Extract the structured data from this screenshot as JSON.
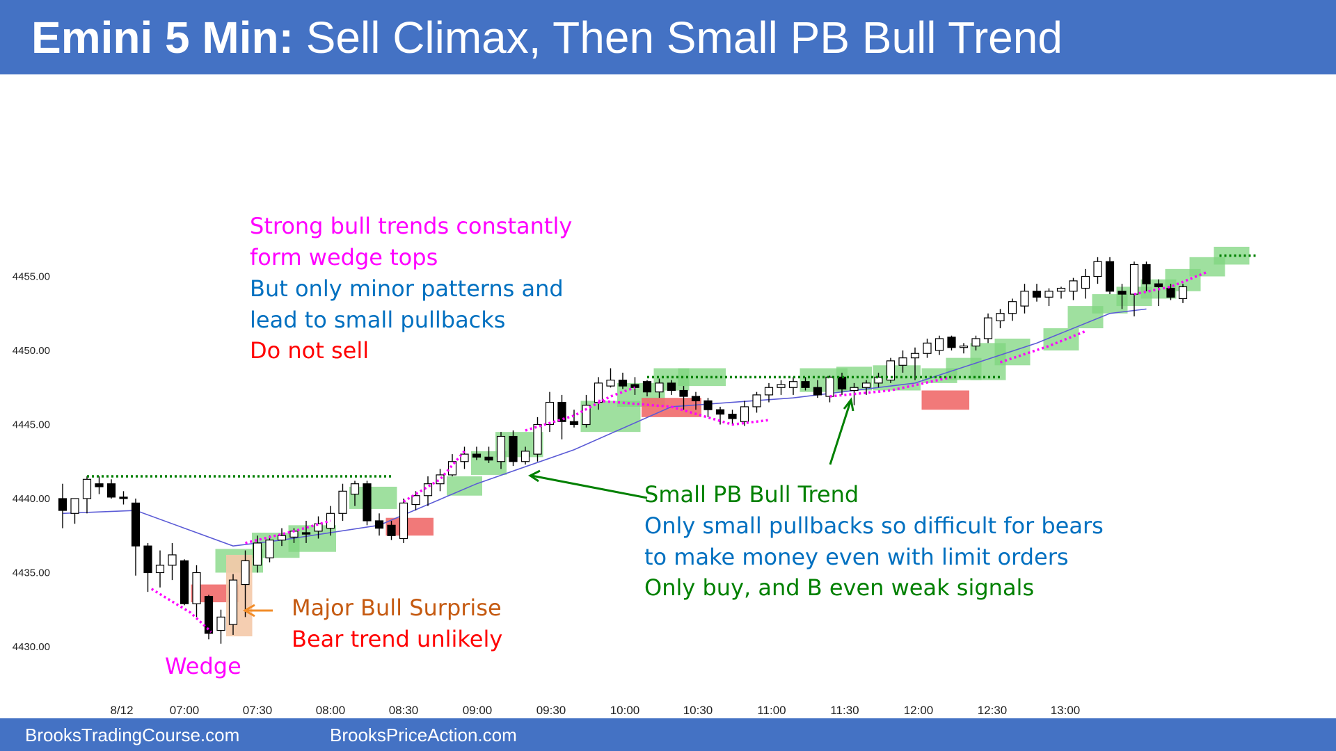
{
  "header": {
    "title_bold": "Emini 5 Min:",
    "title_rest": " Sell Climax, Then Small PB Bull Trend"
  },
  "footer": {
    "left": "BrooksTradingCourse.com",
    "right": "BrooksPriceAction.com"
  },
  "annotations": {
    "wedge_tops": [
      "Strong bull trends constantly",
      "form wedge tops"
    ],
    "minor_patterns": [
      "But only minor patterns and",
      "lead to small pullbacks"
    ],
    "do_not_sell": "Do not sell",
    "major_bull_surprise": "Major Bull Surprise",
    "bear_trend_unlikely": "Bear trend unlikely",
    "wedge": "Wedge",
    "small_pb_bull_trend": "Small PB Bull Trend",
    "only_small_pullbacks": [
      "Only small pullbacks so difficult for bears",
      "to make money even with limit orders"
    ],
    "only_buy": "Only buy, and B even weak signals"
  },
  "colors": {
    "header_bg": "#4472c4",
    "bull_highlight": "#7fd67f",
    "bear_highlight": "#f06a6a",
    "surprise_highlight": "#f4c9a8",
    "ema_line": "#5b5bd6",
    "wedge_dots": "#ff00ff",
    "resistance_dots": "#008000",
    "arrow_orange": "#f28c28",
    "arrow_green": "#008000"
  },
  "chart_data": {
    "type": "candlestick",
    "ylim": [
      4428.5,
      4460
    ],
    "yticks": [
      "4455.00",
      "4450.00",
      "4445.00",
      "4440.00",
      "4435.00",
      "4430.00"
    ],
    "xticks": [
      "8/12",
      "07:00",
      "07:30",
      "08:00",
      "08:30",
      "09:00",
      "09:30",
      "10:00",
      "10:30",
      "11:00",
      "11:30",
      "12:00",
      "12:30",
      "13:00"
    ],
    "bars": [
      {
        "time": "06:35",
        "o": 4440.0,
        "h": 4441.0,
        "l": 4438.0,
        "c": 4439.2
      },
      {
        "time": "06:40",
        "o": 4439.0,
        "h": 4440.0,
        "l": 4438.3,
        "c": 4440.0
      },
      {
        "time": "06:45",
        "o": 4440.0,
        "h": 4441.5,
        "l": 4439.0,
        "c": 4441.3
      },
      {
        "time": "06:50",
        "o": 4441.0,
        "h": 4441.5,
        "l": 4440.3,
        "c": 4440.8
      },
      {
        "time": "06:55",
        "o": 4441.0,
        "h": 4441.3,
        "l": 4440.0,
        "c": 4440.1
      },
      {
        "time": "07:00",
        "o": 4440.1,
        "h": 4440.5,
        "l": 4439.6,
        "c": 4440.0
      },
      {
        "time": "07:05",
        "o": 4439.7,
        "h": 4440.0,
        "l": 4434.8,
        "c": 4436.8
      },
      {
        "time": "07:10",
        "o": 4436.8,
        "h": 4437.0,
        "l": 4433.7,
        "c": 4435.0
      },
      {
        "time": "07:15",
        "o": 4435.0,
        "h": 4436.5,
        "l": 4434.0,
        "c": 4435.5
      },
      {
        "time": "07:20",
        "o": 4435.5,
        "h": 4437.0,
        "l": 4434.5,
        "c": 4436.2
      },
      {
        "time": "07:25",
        "o": 4435.8,
        "h": 4435.9,
        "l": 4432.8,
        "c": 4432.9
      },
      {
        "time": "07:30",
        "o": 4432.9,
        "h": 4435.5,
        "l": 4432.0,
        "c": 4435.0
      },
      {
        "time": "07:35",
        "o": 4433.4,
        "h": 4433.5,
        "l": 4430.5,
        "c": 4430.9
      },
      {
        "time": "07:40",
        "o": 4431.1,
        "h": 4432.5,
        "l": 4430.2,
        "c": 4432.0
      },
      {
        "time": "07:45",
        "o": 4431.5,
        "h": 4434.9,
        "l": 4430.8,
        "c": 4434.5
      },
      {
        "time": "07:50",
        "o": 4434.2,
        "h": 4436.5,
        "l": 4432.0,
        "c": 4435.8
      },
      {
        "time": "07:55",
        "o": 4435.5,
        "h": 4437.5,
        "l": 4435.0,
        "c": 4437.0
      },
      {
        "time": "08:00",
        "o": 4436.0,
        "h": 4437.5,
        "l": 4435.7,
        "c": 4437.2
      },
      {
        "time": "08:05",
        "o": 4437.2,
        "h": 4438.0,
        "l": 4436.8,
        "c": 4437.5
      },
      {
        "time": "08:10",
        "o": 4437.4,
        "h": 4438.0,
        "l": 4437.0,
        "c": 4437.8
      },
      {
        "time": "08:15",
        "o": 4437.7,
        "h": 4438.5,
        "l": 4437.0,
        "c": 4437.6
      },
      {
        "time": "08:20",
        "o": 4437.8,
        "h": 4438.8,
        "l": 4437.3,
        "c": 4438.3
      },
      {
        "time": "08:25",
        "o": 4438.0,
        "h": 4439.5,
        "l": 4437.5,
        "c": 4439.0
      },
      {
        "time": "08:30",
        "o": 4439.0,
        "h": 4441.0,
        "l": 4438.5,
        "c": 4440.5
      },
      {
        "time": "08:35",
        "o": 4440.3,
        "h": 4441.2,
        "l": 4439.5,
        "c": 4441.0
      },
      {
        "time": "08:40",
        "o": 4441.0,
        "h": 4441.2,
        "l": 4438.2,
        "c": 4438.5
      },
      {
        "time": "08:45",
        "o": 4438.5,
        "h": 4439.0,
        "l": 4437.5,
        "c": 4438.0
      },
      {
        "time": "08:50",
        "o": 4438.2,
        "h": 4438.5,
        "l": 4437.2,
        "c": 4437.5
      },
      {
        "time": "08:55",
        "o": 4437.3,
        "h": 4440.0,
        "l": 4437.0,
        "c": 4439.7
      },
      {
        "time": "09:00",
        "o": 4439.6,
        "h": 4440.5,
        "l": 4439.2,
        "c": 4440.2
      },
      {
        "time": "09:05",
        "o": 4440.2,
        "h": 4441.5,
        "l": 4439.5,
        "c": 4441.0
      },
      {
        "time": "09:10",
        "o": 4441.0,
        "h": 4442.0,
        "l": 4440.5,
        "c": 4441.6
      },
      {
        "time": "09:15",
        "o": 4441.6,
        "h": 4443.0,
        "l": 4441.5,
        "c": 4442.5
      },
      {
        "time": "09:20",
        "o": 4442.5,
        "h": 4443.5,
        "l": 4442.0,
        "c": 4443.0
      },
      {
        "time": "09:25",
        "o": 4443.0,
        "h": 4443.5,
        "l": 4442.6,
        "c": 4442.8
      },
      {
        "time": "09:30",
        "o": 4442.8,
        "h": 4443.5,
        "l": 4442.4,
        "c": 4442.6
      },
      {
        "time": "09:35",
        "o": 4442.5,
        "h": 4444.5,
        "l": 4442.0,
        "c": 4444.2
      },
      {
        "time": "09:40",
        "o": 4444.2,
        "h": 4444.6,
        "l": 4442.2,
        "c": 4442.5
      },
      {
        "time": "09:45",
        "o": 4442.5,
        "h": 4443.5,
        "l": 4442.3,
        "c": 4443.2
      },
      {
        "time": "09:50",
        "o": 4443.0,
        "h": 4445.5,
        "l": 4442.5,
        "c": 4445.0
      },
      {
        "time": "09:55",
        "o": 4445.0,
        "h": 4447.2,
        "l": 4444.5,
        "c": 4446.5
      },
      {
        "time": "10:00",
        "o": 4446.5,
        "h": 4447.0,
        "l": 4444.0,
        "c": 4445.2
      },
      {
        "time": "10:05",
        "o": 4445.2,
        "h": 4446.0,
        "l": 4444.8,
        "c": 4445.0
      },
      {
        "time": "10:10",
        "o": 4445.0,
        "h": 4447.0,
        "l": 4444.8,
        "c": 4446.3
      },
      {
        "time": "10:15",
        "o": 4446.5,
        "h": 4448.2,
        "l": 4446.0,
        "c": 4447.8
      },
      {
        "time": "10:20",
        "o": 4447.6,
        "h": 4448.8,
        "l": 4447.5,
        "c": 4448.0
      },
      {
        "time": "10:25",
        "o": 4448.0,
        "h": 4448.5,
        "l": 4447.4,
        "c": 4447.6
      },
      {
        "time": "10:30",
        "o": 4447.7,
        "h": 4448.2,
        "l": 4447.0,
        "c": 4447.5
      },
      {
        "time": "10:35",
        "o": 4447.9,
        "h": 4448.0,
        "l": 4446.9,
        "c": 4447.2
      },
      {
        "time": "10:40",
        "o": 4447.2,
        "h": 4448.1,
        "l": 4446.8,
        "c": 4447.8
      },
      {
        "time": "10:45",
        "o": 4447.8,
        "h": 4448.0,
        "l": 4447.0,
        "c": 4447.3
      },
      {
        "time": "10:50",
        "o": 4447.3,
        "h": 4447.6,
        "l": 4446.0,
        "c": 4446.9
      },
      {
        "time": "10:55",
        "o": 4446.9,
        "h": 4447.2,
        "l": 4446.0,
        "c": 4446.6
      },
      {
        "time": "11:00",
        "o": 4446.6,
        "h": 4446.8,
        "l": 4445.5,
        "c": 4446.0
      },
      {
        "time": "11:05",
        "o": 4446.0,
        "h": 4446.2,
        "l": 4445.0,
        "c": 4445.7
      },
      {
        "time": "11:10",
        "o": 4445.7,
        "h": 4446.0,
        "l": 4445.0,
        "c": 4445.4
      },
      {
        "time": "11:15",
        "o": 4445.2,
        "h": 4446.6,
        "l": 4444.9,
        "c": 4446.2
      },
      {
        "time": "11:20",
        "o": 4446.2,
        "h": 4447.2,
        "l": 4445.8,
        "c": 4447.0
      },
      {
        "time": "11:25",
        "o": 4447.0,
        "h": 4447.8,
        "l": 4446.5,
        "c": 4447.5
      },
      {
        "time": "11:30",
        "o": 4447.5,
        "h": 4448.0,
        "l": 4447.0,
        "c": 4447.7
      },
      {
        "time": "11:35",
        "o": 4447.5,
        "h": 4448.2,
        "l": 4447.0,
        "c": 4447.9
      },
      {
        "time": "11:40",
        "o": 4447.9,
        "h": 4448.2,
        "l": 4447.3,
        "c": 4447.5
      },
      {
        "time": "11:45",
        "o": 4447.5,
        "h": 4448.0,
        "l": 4446.8,
        "c": 4447.0
      },
      {
        "time": "11:50",
        "o": 4446.9,
        "h": 4448.3,
        "l": 4446.5,
        "c": 4448.2
      },
      {
        "time": "11:55",
        "o": 4448.2,
        "h": 4448.5,
        "l": 4447.0,
        "c": 4447.4
      },
      {
        "time": "12:00",
        "o": 4447.3,
        "h": 4447.8,
        "l": 4446.3,
        "c": 4447.5
      },
      {
        "time": "12:05",
        "o": 4447.5,
        "h": 4448.0,
        "l": 4447.0,
        "c": 4447.8
      },
      {
        "time": "12:10",
        "o": 4447.8,
        "h": 4448.5,
        "l": 4447.5,
        "c": 4448.2
      },
      {
        "time": "12:15",
        "o": 4448.0,
        "h": 4449.5,
        "l": 4447.8,
        "c": 4449.3
      },
      {
        "time": "12:20",
        "o": 4449.0,
        "h": 4450.0,
        "l": 4448.5,
        "c": 4449.5
      },
      {
        "time": "12:25",
        "o": 4449.5,
        "h": 4450.2,
        "l": 4448.0,
        "c": 4449.8
      },
      {
        "time": "12:30",
        "o": 4449.8,
        "h": 4450.8,
        "l": 4449.5,
        "c": 4450.5
      },
      {
        "time": "12:35",
        "o": 4450.0,
        "h": 4451.0,
        "l": 4449.7,
        "c": 4450.8
      },
      {
        "time": "12:40",
        "o": 4450.9,
        "h": 4451.0,
        "l": 4450.0,
        "c": 4450.2
      },
      {
        "time": "12:45",
        "o": 4450.2,
        "h": 4450.5,
        "l": 4449.8,
        "c": 4450.3
      },
      {
        "time": "12:50",
        "o": 4450.3,
        "h": 4451.0,
        "l": 4450.0,
        "c": 4450.8
      },
      {
        "time": "12:55",
        "o": 4450.8,
        "h": 4452.5,
        "l": 4450.5,
        "c": 4452.2
      },
      {
        "time": "13:00",
        "o": 4452.0,
        "h": 4452.8,
        "l": 4451.5,
        "c": 4452.5
      },
      {
        "time": "13:05",
        "o": 4452.5,
        "h": 4453.5,
        "l": 4452.0,
        "c": 4453.3
      },
      {
        "time": "13:10",
        "o": 4453.0,
        "h": 4454.5,
        "l": 4452.5,
        "c": 4454.0
      },
      {
        "time": "13:15",
        "o": 4454.0,
        "h": 4454.5,
        "l": 4453.3,
        "c": 4453.6
      },
      {
        "time": "13:20",
        "o": 4453.6,
        "h": 4454.2,
        "l": 4453.0,
        "c": 4454.0
      },
      {
        "time": "13:25",
        "o": 4454.0,
        "h": 4454.3,
        "l": 4453.5,
        "c": 4454.2
      },
      {
        "time": "13:30",
        "o": 4454.0,
        "h": 4454.9,
        "l": 4453.4,
        "c": 4454.7
      },
      {
        "time": "13:35",
        "o": 4454.2,
        "h": 4455.5,
        "l": 4453.5,
        "c": 4455.0
      },
      {
        "time": "13:40",
        "o": 4455.0,
        "h": 4456.3,
        "l": 4454.5,
        "c": 4456.0
      },
      {
        "time": "13:45",
        "o": 4456.0,
        "h": 4456.3,
        "l": 4453.8,
        "c": 4454.0
      },
      {
        "time": "13:50",
        "o": 4454.0,
        "h": 4454.5,
        "l": 4452.8,
        "c": 4453.8
      },
      {
        "time": "13:55",
        "o": 4453.8,
        "h": 4456.0,
        "l": 4452.3,
        "c": 4455.8
      },
      {
        "time": "14:00",
        "o": 4455.8,
        "h": 4456.0,
        "l": 4454.0,
        "c": 4454.5
      },
      {
        "time": "14:05",
        "o": 4454.5,
        "h": 4454.8,
        "l": 4453.0,
        "c": 4454.3
      },
      {
        "time": "14:10",
        "o": 4454.2,
        "h": 4454.5,
        "l": 4453.4,
        "c": 4453.6
      },
      {
        "time": "14:15",
        "o": 4453.5,
        "h": 4454.5,
        "l": 4453.2,
        "c": 4454.3
      }
    ],
    "ema": [
      [
        0,
        4439.0
      ],
      [
        6,
        4439.2
      ],
      [
        10,
        4438.0
      ],
      [
        14,
        4436.8
      ],
      [
        18,
        4437.2
      ],
      [
        26,
        4438.2
      ],
      [
        34,
        4441.0
      ],
      [
        42,
        4443.3
      ],
      [
        50,
        4446.2
      ],
      [
        60,
        4446.8
      ],
      [
        70,
        4447.8
      ],
      [
        80,
        4450.5
      ],
      [
        86,
        4452.5
      ],
      [
        89,
        4452.8
      ]
    ],
    "bull_boxes": [
      [
        13,
        16,
        4435,
        4436.6
      ],
      [
        16,
        19,
        4436,
        4437.7
      ],
      [
        19,
        22,
        4436.4,
        4438.2
      ],
      [
        24,
        27,
        4439.3,
        4440.8
      ],
      [
        32,
        34,
        4440.2,
        4441.5
      ],
      [
        34,
        36,
        4441.6,
        4443.2
      ],
      [
        36,
        39,
        4442.8,
        4444.5
      ],
      [
        43,
        47,
        4444.5,
        4446.6
      ],
      [
        46,
        49,
        4446.2,
        4447.8
      ],
      [
        49,
        51,
        4447.3,
        4448.8
      ],
      [
        51,
        54,
        4447.6,
        4448.8
      ],
      [
        61,
        64,
        4447.2,
        4448.8
      ],
      [
        64,
        66,
        4447.3,
        4448.9
      ],
      [
        67,
        70,
        4447.3,
        4449.0
      ],
      [
        71,
        73,
        4447.8,
        4448.8
      ],
      [
        73,
        75,
        4448.0,
        4449.5
      ],
      [
        75,
        77,
        4448.0,
        4450.5
      ],
      [
        77,
        79,
        4449.0,
        4450.8
      ],
      [
        81,
        83,
        4450.0,
        4451.5
      ],
      [
        83,
        85,
        4451.5,
        4453.0
      ],
      [
        85,
        87,
        4452.5,
        4453.8
      ],
      [
        87,
        89,
        4453.0,
        4454.3
      ],
      [
        89,
        91,
        4453.5,
        4454.8
      ],
      [
        91,
        93,
        4454.0,
        4455.5
      ],
      [
        93,
        95,
        4455.0,
        4456.3
      ],
      [
        95,
        97,
        4455.8,
        4457.0
      ]
    ],
    "bear_boxes": [
      [
        11,
        14,
        4433.0,
        4434.2
      ],
      [
        27,
        30,
        4437.5,
        4438.7
      ],
      [
        48,
        52,
        4445.5,
        4446.8
      ],
      [
        71,
        74,
        4446.0,
        4447.3
      ]
    ],
    "surprise_box": [
      14,
      15,
      4430.7,
      4436.2
    ],
    "wedge_lines": [
      [
        [
          7.3,
          4433.9
        ],
        [
          10.5,
          4432.3
        ],
        [
          12.2,
          4431.0
        ]
      ],
      [
        [
          15,
          4437
        ],
        [
          19,
          4437.8
        ],
        [
          22,
          4438.5
        ]
      ],
      [
        [
          28,
          4439.8
        ],
        [
          31,
          4441.3
        ],
        [
          33,
          4443.2
        ]
      ],
      [
        [
          38,
          4444.6
        ],
        [
          42,
          4445.6
        ],
        [
          45,
          4446.9
        ],
        [
          47,
          4447.5
        ]
      ],
      [
        [
          44,
          4446.6
        ],
        [
          50,
          4446.2
        ],
        [
          55,
          4445.0
        ],
        [
          58,
          4445.3
        ]
      ],
      [
        [
          63,
          4446.9
        ],
        [
          68,
          4447.3
        ],
        [
          73,
          4448.2
        ]
      ],
      [
        [
          77,
          4449.2
        ],
        [
          81,
          4450.3
        ],
        [
          84,
          4451.3
        ]
      ],
      [
        [
          88,
          4453.8
        ],
        [
          91,
          4454.3
        ],
        [
          94,
          4455.3
        ]
      ]
    ],
    "resistance_lines": [
      [
        [
          2,
          4441.5
        ],
        [
          27,
          4441.5
        ]
      ],
      [
        [
          48,
          4448.2
        ],
        [
          77,
          4448.2
        ]
      ],
      [
        [
          95,
          4456.4
        ],
        [
          98,
          4456.4
        ]
      ]
    ]
  }
}
